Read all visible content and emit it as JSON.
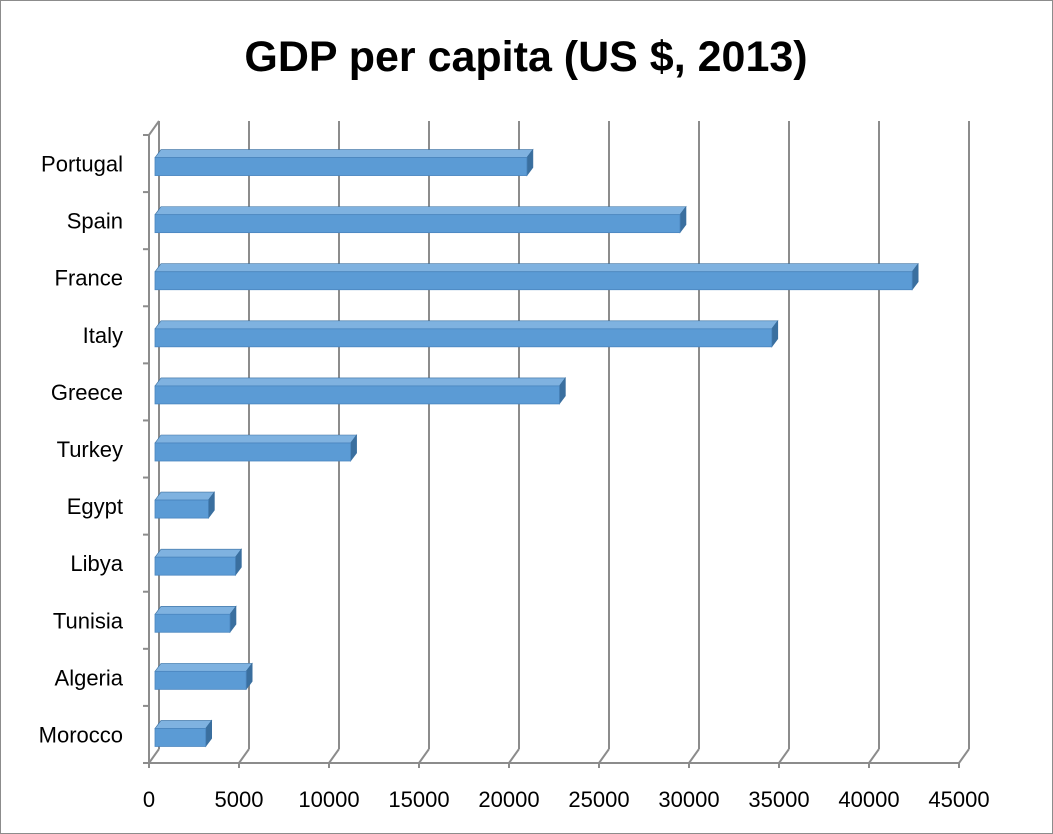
{
  "chart_data": {
    "type": "bar",
    "orientation": "horizontal",
    "style": "3d-clustered",
    "title": "GDP per capita (US $, 2013)",
    "xlabel": "",
    "ylabel": "",
    "categories": [
      "Portugal",
      "Spain",
      "France",
      "Italy",
      "Greece",
      "Turkey",
      "Egypt",
      "Libya",
      "Tunisia",
      "Algeria",
      "Morocco"
    ],
    "values": [
      20995,
      29500,
      42400,
      34600,
      22800,
      11200,
      3300,
      4800,
      4500,
      5400,
      3150
    ],
    "xlim": [
      0,
      45000
    ],
    "x_ticks": [
      "0",
      "5000",
      "10000",
      "15000",
      "20000",
      "25000",
      "30000",
      "35000",
      "40000",
      "45000"
    ],
    "grid": true,
    "legend": "none",
    "colors": {
      "bar_front": "#5b9bd5",
      "bar_top": "#7fb2e0",
      "bar_side": "#3a6f9f",
      "gridline": "#8c8c8c",
      "axis": "#8c8c8c",
      "text": "#000000"
    }
  }
}
